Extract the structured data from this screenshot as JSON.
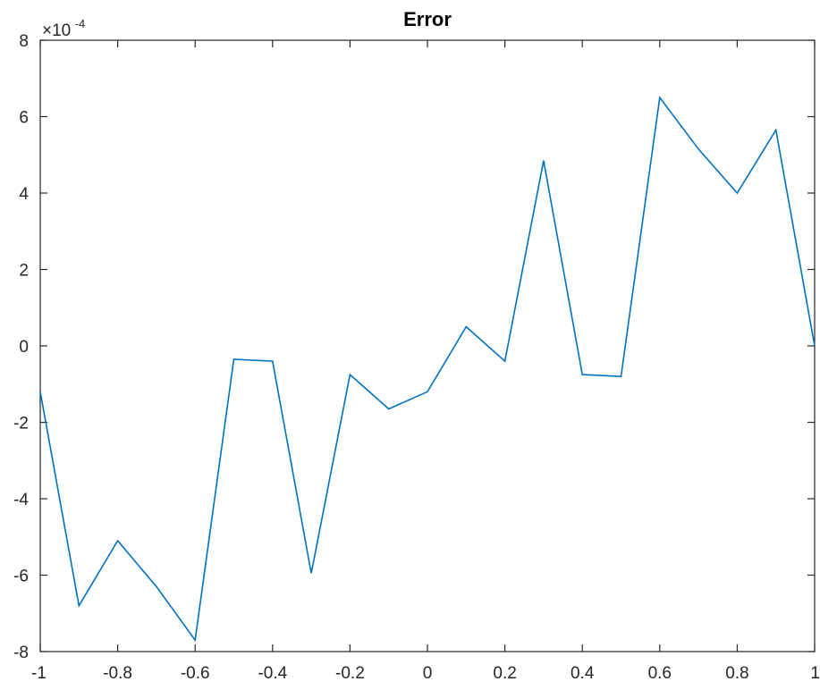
{
  "chart_data": {
    "type": "line",
    "title": "Error",
    "xlabel": "",
    "ylabel": "",
    "xlim": [
      -1,
      1
    ],
    "ylim": [
      -8,
      8
    ],
    "y_scale_factor": "×10",
    "y_scale_exponent": "-4",
    "xticks": [
      "-1",
      "-0.8",
      "-0.6",
      "-0.4",
      "-0.2",
      "0",
      "0.2",
      "0.4",
      "0.6",
      "0.8",
      "1"
    ],
    "yticks": [
      "-8",
      "-6",
      "-4",
      "-2",
      "0",
      "2",
      "4",
      "6",
      "8"
    ],
    "grid": false,
    "series": [
      {
        "color": "#0072bd",
        "x": [
          -1,
          -0.9,
          -0.8,
          -0.7,
          -0.6,
          -0.5,
          -0.4,
          -0.3,
          -0.2,
          -0.1,
          0,
          0.1,
          0.2,
          0.3,
          0.4,
          0.5,
          0.6,
          0.7,
          0.8,
          0.9,
          1
        ],
        "y": [
          -1.2,
          -6.8,
          -5.1,
          -6.3,
          -7.7,
          -0.35,
          -0.4,
          -5.95,
          -0.75,
          -1.65,
          -1.2,
          0.5,
          -0.4,
          4.85,
          -0.75,
          -0.8,
          6.5,
          5.15,
          4.0,
          5.65,
          0.0
        ]
      }
    ]
  }
}
